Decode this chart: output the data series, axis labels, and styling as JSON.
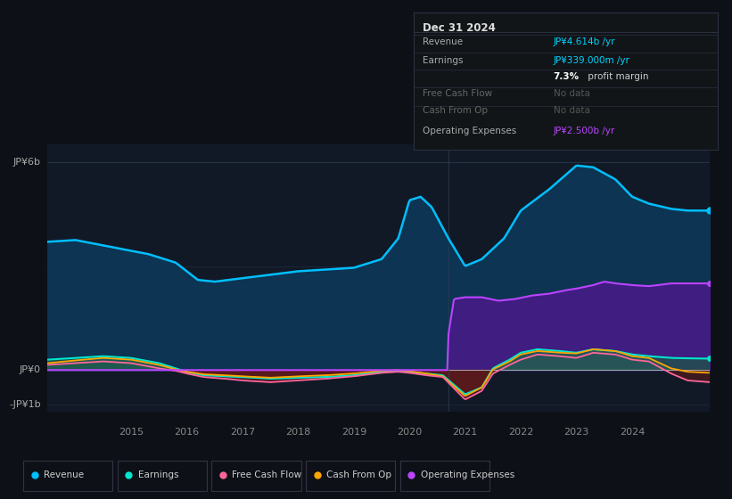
{
  "background_color": "#0d1117",
  "plot_bg_color": "#111927",
  "colors": {
    "revenue": "#00bfff",
    "earnings": "#00e5cc",
    "free_cash_flow": "#ff6699",
    "cash_from_op": "#ffa500",
    "operating_expenses": "#bb44ff",
    "revenue_fill": "#0d3a5a",
    "earnings_fill_pos": "#1a5a44",
    "earnings_fill_neg": "#5a1a1a",
    "op_exp_fill": "#4a1a8a",
    "fcf_fill_neg": "#6a1a1a"
  },
  "y_label_top": "JP¥6b",
  "y_label_zero": "JP¥0",
  "y_label_neg": "-JP¥1b",
  "x_ticks": [
    2015,
    2016,
    2017,
    2018,
    2019,
    2020,
    2021,
    2022,
    2023,
    2024
  ],
  "ylim": [
    -1.2,
    6.5
  ],
  "xlim": [
    2013.5,
    2025.4
  ],
  "legend": [
    {
      "label": "Revenue",
      "color": "#00bfff"
    },
    {
      "label": "Earnings",
      "color": "#00e5cc"
    },
    {
      "label": "Free Cash Flow",
      "color": "#ff6699"
    },
    {
      "label": "Cash From Op",
      "color": "#ffa500"
    },
    {
      "label": "Operating Expenses",
      "color": "#bb44ff"
    }
  ]
}
